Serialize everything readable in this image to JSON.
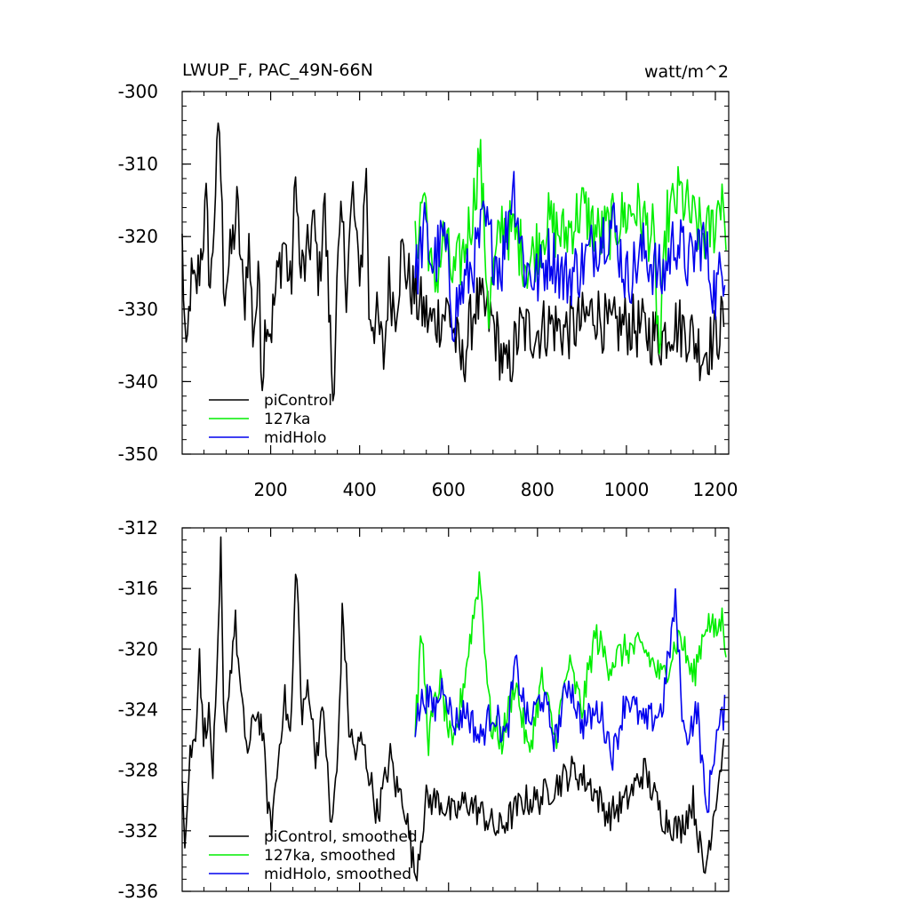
{
  "chart_data": [
    {
      "type": "line",
      "title_left": "LWUP_F, PAC_49N-66N",
      "title_right": "watt/m^2",
      "xlabel": "",
      "ylabel": "",
      "xlim": [
        1,
        1230
      ],
      "ylim": [
        -350,
        -300
      ],
      "x_ticks": [
        200,
        400,
        600,
        800,
        1000,
        1200
      ],
      "y_ticks": [
        -300,
        -310,
        -320,
        -330,
        -340,
        -350
      ],
      "grid": false,
      "legend_position": "bottom-left",
      "series": [
        {
          "name": "piControl",
          "color": "#000000",
          "x_range": [
            1,
            1220
          ],
          "anchors": [
            [
              1,
              -321
            ],
            [
              10,
              -339
            ],
            [
              20,
              -326
            ],
            [
              30,
              -328
            ],
            [
              40,
              -324
            ],
            [
              55,
              -316
            ],
            [
              65,
              -328
            ],
            [
              75,
              -314
            ],
            [
              85,
              -305
            ],
            [
              95,
              -327
            ],
            [
              110,
              -323
            ],
            [
              125,
              -316
            ],
            [
              140,
              -330
            ],
            [
              150,
              -320
            ],
            [
              160,
              -333
            ],
            [
              175,
              -326
            ],
            [
              180,
              -340
            ],
            [
              190,
              -330
            ],
            [
              200,
              -333
            ],
            [
              215,
              -326
            ],
            [
              230,
              -320
            ],
            [
              245,
              -328
            ],
            [
              258,
              -310
            ],
            [
              265,
              -325
            ],
            [
              280,
              -324
            ],
            [
              295,
              -318
            ],
            [
              310,
              -326
            ],
            [
              320,
              -314
            ],
            [
              330,
              -328
            ],
            [
              340,
              -342
            ],
            [
              350,
              -326
            ],
            [
              360,
              -318
            ],
            [
              370,
              -326
            ],
            [
              385,
              -314
            ],
            [
              395,
              -324
            ],
            [
              405,
              -323
            ],
            [
              415,
              -309
            ],
            [
              420,
              -330
            ],
            [
              440,
              -332
            ],
            [
              455,
              -337
            ],
            [
              465,
              -326
            ],
            [
              480,
              -330
            ],
            [
              495,
              -322
            ],
            [
              510,
              -326
            ],
            [
              530,
              -329
            ],
            [
              560,
              -332
            ],
            [
              600,
              -330
            ],
            [
              630,
              -338
            ],
            [
              660,
              -329
            ],
            [
              700,
              -332
            ],
            [
              730,
              -339
            ],
            [
              760,
              -333
            ],
            [
              800,
              -333
            ],
            [
              830,
              -332
            ],
            [
              860,
              -333
            ],
            [
              900,
              -332
            ],
            [
              930,
              -330
            ],
            [
              960,
              -333
            ],
            [
              1000,
              -332
            ],
            [
              1040,
              -333
            ],
            [
              1080,
              -334
            ],
            [
              1100,
              -332
            ],
            [
              1140,
              -333
            ],
            [
              1170,
              -336
            ],
            [
              1200,
              -334
            ],
            [
              1220,
              -331
            ]
          ]
        },
        {
          "name": "127ka",
          "color": "#00ee00",
          "x_range": [
            525,
            1225
          ],
          "anchors": [
            [
              525,
              -322
            ],
            [
              545,
              -313
            ],
            [
              565,
              -328
            ],
            [
              590,
              -320
            ],
            [
              610,
              -326
            ],
            [
              635,
              -322
            ],
            [
              655,
              -316
            ],
            [
              670,
              -308
            ],
            [
              690,
              -330
            ],
            [
              720,
              -318
            ],
            [
              750,
              -320
            ],
            [
              780,
              -324
            ],
            [
              820,
              -318
            ],
            [
              860,
              -320
            ],
            [
              900,
              -316
            ],
            [
              940,
              -320
            ],
            [
              980,
              -318
            ],
            [
              1020,
              -316
            ],
            [
              1060,
              -320
            ],
            [
              1075,
              -337
            ],
            [
              1090,
              -318
            ],
            [
              1120,
              -314
            ],
            [
              1150,
              -318
            ],
            [
              1180,
              -320
            ],
            [
              1200,
              -318
            ],
            [
              1215,
              -313
            ],
            [
              1225,
              -320
            ]
          ]
        },
        {
          "name": "midHolo",
          "color": "#0000ee",
          "x_range": [
            525,
            1222
          ],
          "anchors": [
            [
              525,
              -326
            ],
            [
              545,
              -319
            ],
            [
              565,
              -324
            ],
            [
              590,
              -320
            ],
            [
              610,
              -331
            ],
            [
              640,
              -326
            ],
            [
              660,
              -323
            ],
            [
              680,
              -318
            ],
            [
              700,
              -322
            ],
            [
              720,
              -324
            ],
            [
              745,
              -312
            ],
            [
              770,
              -324
            ],
            [
              800,
              -326
            ],
            [
              830,
              -322
            ],
            [
              860,
              -326
            ],
            [
              900,
              -324
            ],
            [
              940,
              -320
            ],
            [
              970,
              -318
            ],
            [
              1000,
              -326
            ],
            [
              1040,
              -322
            ],
            [
              1080,
              -326
            ],
            [
              1110,
              -320
            ],
            [
              1140,
              -324
            ],
            [
              1170,
              -320
            ],
            [
              1200,
              -328
            ],
            [
              1222,
              -323
            ]
          ]
        }
      ]
    },
    {
      "type": "line",
      "xlabel": "",
      "ylabel": "",
      "xlim": [
        1,
        1230
      ],
      "ylim": [
        -336,
        -312
      ],
      "x_ticks": [
        200,
        400,
        600,
        800,
        1000,
        1200
      ],
      "y_ticks": [
        -312,
        -316,
        -320,
        -324,
        -328,
        -332,
        -336
      ],
      "grid": false,
      "legend_position": "bottom-left",
      "series": [
        {
          "name": "piControl, smoothed",
          "color": "#000000",
          "x_range": [
            1,
            1220
          ],
          "anchors": [
            [
              1,
              -328
            ],
            [
              8,
              -333
            ],
            [
              18,
              -327
            ],
            [
              30,
              -326
            ],
            [
              40,
              -320
            ],
            [
              48,
              -326
            ],
            [
              60,
              -324
            ],
            [
              70,
              -328
            ],
            [
              80,
              -322
            ],
            [
              88,
              -313.5
            ],
            [
              95,
              -326
            ],
            [
              105,
              -323
            ],
            [
              120,
              -318
            ],
            [
              135,
              -324
            ],
            [
              150,
              -327
            ],
            [
              165,
              -324
            ],
            [
              180,
              -325
            ],
            [
              190,
              -329
            ],
            [
              200,
              -332
            ],
            [
              215,
              -328
            ],
            [
              230,
              -323
            ],
            [
              245,
              -326
            ],
            [
              258,
              -313.5
            ],
            [
              270,
              -325
            ],
            [
              285,
              -322
            ],
            [
              300,
              -327
            ],
            [
              320,
              -324
            ],
            [
              335,
              -332
            ],
            [
              350,
              -328
            ],
            [
              362,
              -317
            ],
            [
              375,
              -325
            ],
            [
              390,
              -327
            ],
            [
              405,
              -326
            ],
            [
              420,
              -328
            ],
            [
              440,
              -331
            ],
            [
              455,
              -329
            ],
            [
              470,
              -327
            ],
            [
              480,
              -329
            ],
            [
              500,
              -330
            ],
            [
              525,
              -335
            ],
            [
              550,
              -330
            ],
            [
              580,
              -330
            ],
            [
              610,
              -331
            ],
            [
              640,
              -330
            ],
            [
              680,
              -331
            ],
            [
              710,
              -332
            ],
            [
              740,
              -331
            ],
            [
              770,
              -330
            ],
            [
              800,
              -330
            ],
            [
              840,
              -329
            ],
            [
              880,
              -328
            ],
            [
              920,
              -329
            ],
            [
              960,
              -331
            ],
            [
              1000,
              -330
            ],
            [
              1040,
              -328
            ],
            [
              1080,
              -331
            ],
            [
              1120,
              -332
            ],
            [
              1150,
              -330
            ],
            [
              1175,
              -335
            ],
            [
              1200,
              -330
            ],
            [
              1220,
              -326
            ]
          ]
        },
        {
          "name": "127ka, smoothed",
          "color": "#00ee00",
          "x_range": [
            525,
            1225
          ],
          "anchors": [
            [
              525,
              -325
            ],
            [
              540,
              -319
            ],
            [
              555,
              -326
            ],
            [
              580,
              -322
            ],
            [
              610,
              -327
            ],
            [
              640,
              -321
            ],
            [
              670,
              -315
            ],
            [
              695,
              -325
            ],
            [
              720,
              -326
            ],
            [
              750,
              -322
            ],
            [
              780,
              -327
            ],
            [
              810,
              -322
            ],
            [
              840,
              -326
            ],
            [
              870,
              -321
            ],
            [
              900,
              -324
            ],
            [
              930,
              -319
            ],
            [
              960,
              -321
            ],
            [
              1000,
              -320
            ],
            [
              1040,
              -320
            ],
            [
              1080,
              -322
            ],
            [
              1120,
              -319
            ],
            [
              1150,
              -322
            ],
            [
              1180,
              -318
            ],
            [
              1200,
              -319
            ],
            [
              1215,
              -318
            ],
            [
              1225,
              -320
            ]
          ]
        },
        {
          "name": "midHolo, smoothed",
          "color": "#0000ee",
          "x_range": [
            525,
            1222
          ],
          "anchors": [
            [
              525,
              -325
            ],
            [
              545,
              -323
            ],
            [
              570,
              -324
            ],
            [
              590,
              -322
            ],
            [
              610,
              -325
            ],
            [
              640,
              -324
            ],
            [
              670,
              -326
            ],
            [
              700,
              -324
            ],
            [
              730,
              -326
            ],
            [
              750,
              -321
            ],
            [
              780,
              -325
            ],
            [
              810,
              -323
            ],
            [
              840,
              -326
            ],
            [
              870,
              -322
            ],
            [
              900,
              -325
            ],
            [
              940,
              -324
            ],
            [
              970,
              -327
            ],
            [
              1000,
              -323
            ],
            [
              1040,
              -325
            ],
            [
              1080,
              -324
            ],
            [
              1110,
              -317
            ],
            [
              1130,
              -326
            ],
            [
              1160,
              -324
            ],
            [
              1180,
              -331
            ],
            [
              1200,
              -326
            ],
            [
              1222,
              -324
            ]
          ]
        }
      ]
    }
  ]
}
